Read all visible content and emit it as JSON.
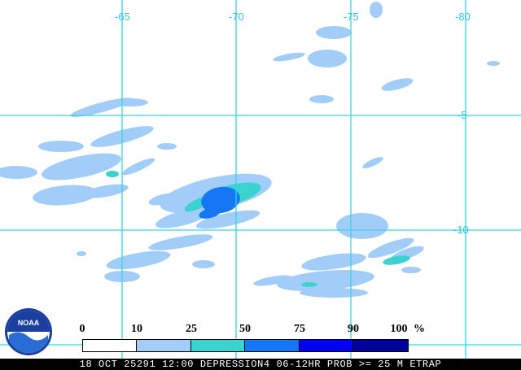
{
  "map": {
    "longitude_labels": [
      "-65",
      "-70",
      "-75",
      "-80"
    ],
    "latitude_labels": [
      "-5",
      "-10"
    ],
    "colors": {
      "grid": "#33d6e6",
      "prob_10_25": "#a3cdf9",
      "prob_25_50": "#3ad3d0",
      "prob_50_75": "#1677f6",
      "prob_75_90": "#0000f5",
      "prob_90_100": "#00009a"
    }
  },
  "legend": {
    "ticks": [
      "0",
      "10",
      "25",
      "50",
      "75",
      "90",
      "100"
    ],
    "unit": "%",
    "bins": [
      {
        "range": "0-10",
        "color": "#ffffff"
      },
      {
        "range": "10-25",
        "color": "#a3cdf9"
      },
      {
        "range": "25-50",
        "color": "#3ad3d0"
      },
      {
        "range": "50-75",
        "color": "#1677f6"
      },
      {
        "range": "75-90",
        "color": "#0000f5"
      },
      {
        "range": "90-100",
        "color": "#00009a"
      }
    ]
  },
  "logo": {
    "text": "NOAA",
    "icon": "noaa-logo"
  },
  "footer": {
    "text": "18 OCT 25291 12:00 DEPRESSION4 06-12HR PROB >= 25 M ETRAP"
  }
}
